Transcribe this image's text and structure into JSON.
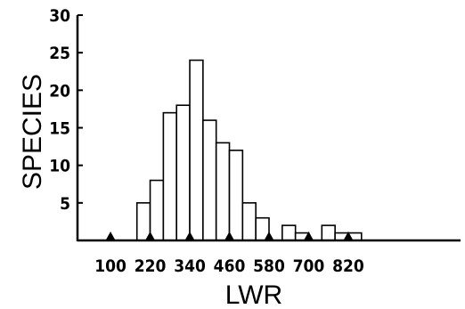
{
  "chart_data": {
    "type": "bar",
    "xlabel": "LWR",
    "ylabel": "SPECIES",
    "bin_width": 40,
    "bins": [
      {
        "start": 100,
        "end": 140,
        "value": 0
      },
      {
        "start": 140,
        "end": 180,
        "value": 0
      },
      {
        "start": 180,
        "end": 220,
        "value": 5
      },
      {
        "start": 220,
        "end": 260,
        "value": 8
      },
      {
        "start": 260,
        "end": 300,
        "value": 17
      },
      {
        "start": 300,
        "end": 340,
        "value": 18
      },
      {
        "start": 340,
        "end": 380,
        "value": 24
      },
      {
        "start": 380,
        "end": 420,
        "value": 16
      },
      {
        "start": 420,
        "end": 460,
        "value": 13
      },
      {
        "start": 460,
        "end": 500,
        "value": 12
      },
      {
        "start": 500,
        "end": 540,
        "value": 5
      },
      {
        "start": 540,
        "end": 580,
        "value": 3
      },
      {
        "start": 580,
        "end": 620,
        "value": 0
      },
      {
        "start": 620,
        "end": 660,
        "value": 2
      },
      {
        "start": 660,
        "end": 700,
        "value": 1
      },
      {
        "start": 700,
        "end": 740,
        "value": 0
      },
      {
        "start": 740,
        "end": 780,
        "value": 2
      },
      {
        "start": 780,
        "end": 820,
        "value": 1
      },
      {
        "start": 820,
        "end": 860,
        "value": 1
      }
    ],
    "xticks": [
      100,
      220,
      340,
      460,
      580,
      700,
      820
    ],
    "xtick_labels": [
      "100",
      "220",
      "340",
      "460",
      "580",
      "700",
      "820"
    ],
    "yticks": [
      5,
      10,
      15,
      20,
      25,
      30
    ],
    "ytick_labels": [
      "5",
      "10",
      "15",
      "20",
      "25",
      "30"
    ],
    "xlim": [
      0,
      1160
    ],
    "ylim": [
      0,
      30
    ],
    "grid": false,
    "legend": "none"
  }
}
